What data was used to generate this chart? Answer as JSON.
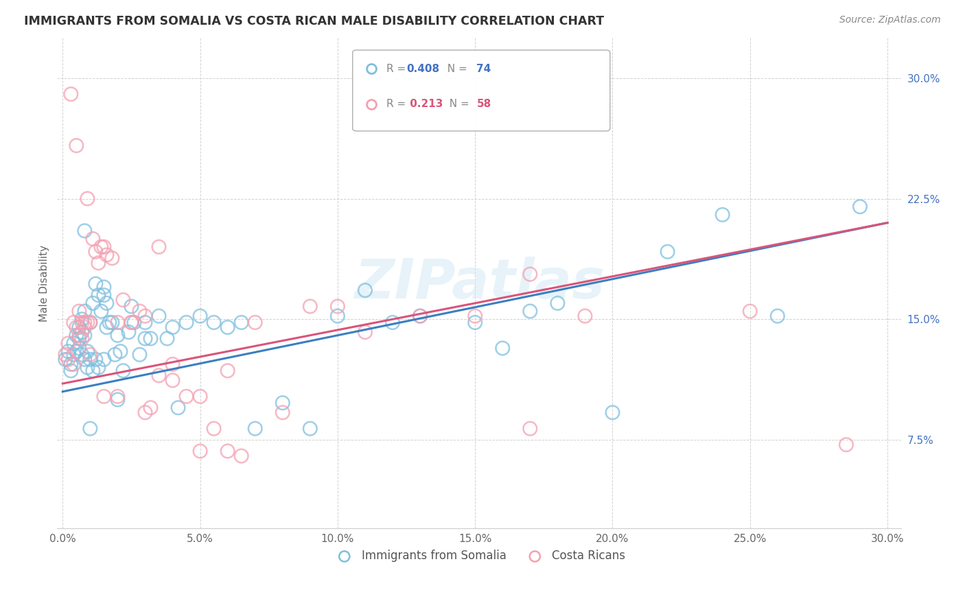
{
  "title": "IMMIGRANTS FROM SOMALIA VS COSTA RICAN MALE DISABILITY CORRELATION CHART",
  "source": "Source: ZipAtlas.com",
  "ylabel": "Male Disability",
  "x_ticks": [
    0.0,
    0.05,
    0.1,
    0.15,
    0.2,
    0.25,
    0.3
  ],
  "x_tick_labels": [
    "0.0%",
    "5.0%",
    "10.0%",
    "15.0%",
    "20.0%",
    "25.0%",
    "30.0%"
  ],
  "y_ticks": [
    0.075,
    0.15,
    0.225,
    0.3
  ],
  "y_tick_labels": [
    "7.5%",
    "15.0%",
    "22.5%",
    "30.0%"
  ],
  "xlim": [
    -0.002,
    0.305
  ],
  "ylim": [
    0.02,
    0.325
  ],
  "color_somalia": "#7fbfdf",
  "color_costarica": "#f4a0b0",
  "color_somalia_line": "#3a7fc1",
  "color_costarica_line": "#d9547a",
  "watermark": "ZIPatlas",
  "somalia_x": [
    0.001,
    0.002,
    0.003,
    0.003,
    0.004,
    0.004,
    0.005,
    0.005,
    0.006,
    0.006,
    0.006,
    0.007,
    0.007,
    0.007,
    0.008,
    0.008,
    0.008,
    0.009,
    0.009,
    0.01,
    0.01,
    0.011,
    0.011,
    0.012,
    0.012,
    0.013,
    0.013,
    0.014,
    0.015,
    0.015,
    0.016,
    0.016,
    0.017,
    0.018,
    0.019,
    0.02,
    0.021,
    0.022,
    0.024,
    0.026,
    0.028,
    0.03,
    0.032,
    0.035,
    0.038,
    0.04,
    0.042,
    0.045,
    0.05,
    0.055,
    0.06,
    0.065,
    0.07,
    0.08,
    0.09,
    0.1,
    0.11,
    0.12,
    0.13,
    0.15,
    0.16,
    0.17,
    0.18,
    0.2,
    0.22,
    0.24,
    0.26,
    0.01,
    0.015,
    0.02,
    0.025,
    0.03,
    0.29,
    0.008
  ],
  "somalia_y": [
    0.125,
    0.13,
    0.122,
    0.118,
    0.128,
    0.135,
    0.13,
    0.14,
    0.132,
    0.138,
    0.145,
    0.128,
    0.142,
    0.15,
    0.125,
    0.14,
    0.155,
    0.13,
    0.12,
    0.148,
    0.125,
    0.16,
    0.118,
    0.172,
    0.125,
    0.165,
    0.12,
    0.155,
    0.17,
    0.125,
    0.145,
    0.16,
    0.148,
    0.148,
    0.128,
    0.14,
    0.13,
    0.118,
    0.142,
    0.148,
    0.128,
    0.148,
    0.138,
    0.152,
    0.138,
    0.145,
    0.095,
    0.148,
    0.152,
    0.148,
    0.145,
    0.148,
    0.082,
    0.098,
    0.082,
    0.152,
    0.168,
    0.148,
    0.152,
    0.148,
    0.132,
    0.155,
    0.16,
    0.092,
    0.192,
    0.215,
    0.152,
    0.082,
    0.165,
    0.1,
    0.158,
    0.138,
    0.22,
    0.205
  ],
  "costarica_x": [
    0.001,
    0.002,
    0.002,
    0.003,
    0.004,
    0.004,
    0.005,
    0.005,
    0.006,
    0.006,
    0.007,
    0.007,
    0.008,
    0.008,
    0.009,
    0.009,
    0.01,
    0.011,
    0.012,
    0.013,
    0.014,
    0.015,
    0.016,
    0.018,
    0.02,
    0.022,
    0.025,
    0.028,
    0.03,
    0.032,
    0.035,
    0.04,
    0.045,
    0.05,
    0.055,
    0.06,
    0.065,
    0.07,
    0.08,
    0.09,
    0.1,
    0.11,
    0.13,
    0.15,
    0.17,
    0.19,
    0.25,
    0.01,
    0.015,
    0.02,
    0.025,
    0.03,
    0.035,
    0.04,
    0.05,
    0.06,
    0.285,
    0.17
  ],
  "costarica_y": [
    0.128,
    0.125,
    0.135,
    0.29,
    0.148,
    0.122,
    0.258,
    0.145,
    0.14,
    0.155,
    0.148,
    0.138,
    0.145,
    0.148,
    0.148,
    0.225,
    0.148,
    0.2,
    0.192,
    0.185,
    0.195,
    0.195,
    0.19,
    0.188,
    0.148,
    0.162,
    0.148,
    0.155,
    0.152,
    0.095,
    0.195,
    0.122,
    0.102,
    0.102,
    0.082,
    0.118,
    0.065,
    0.148,
    0.092,
    0.158,
    0.158,
    0.142,
    0.152,
    0.152,
    0.178,
    0.152,
    0.155,
    0.128,
    0.102,
    0.102,
    0.148,
    0.092,
    0.115,
    0.112,
    0.068,
    0.068,
    0.072,
    0.082
  ]
}
